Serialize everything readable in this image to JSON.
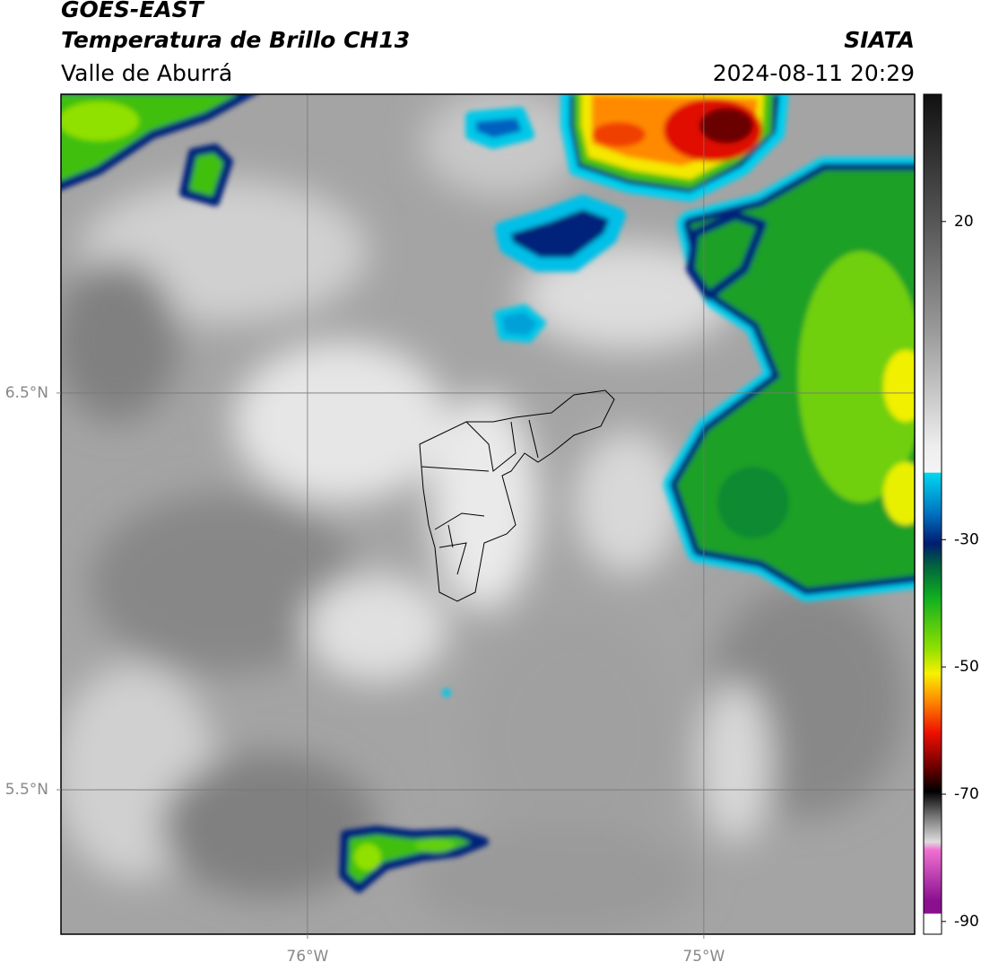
{
  "header": {
    "title": "GOES-EAST",
    "subtitle": "Temperatura de Brillo CH13",
    "region": "Valle de Aburrá",
    "source": "SIATA",
    "datetime": "2024-08-11 20:29"
  },
  "map": {
    "xlim": [
      -76.622,
      -74.468
    ],
    "ylim": [
      5.136,
      7.253
    ],
    "xticks": [
      {
        "value": -76,
        "label": "76°W"
      },
      {
        "value": -75,
        "label": "75°W"
      }
    ],
    "yticks": [
      {
        "value": 6.5,
        "label": "6.5°N"
      },
      {
        "value": 5.5,
        "label": "5.5°N"
      }
    ],
    "grid": true
  },
  "colorbar": {
    "lim": [
      -92,
      40
    ],
    "ticks": [
      20,
      -30,
      -50,
      -70,
      -90
    ]
  }
}
